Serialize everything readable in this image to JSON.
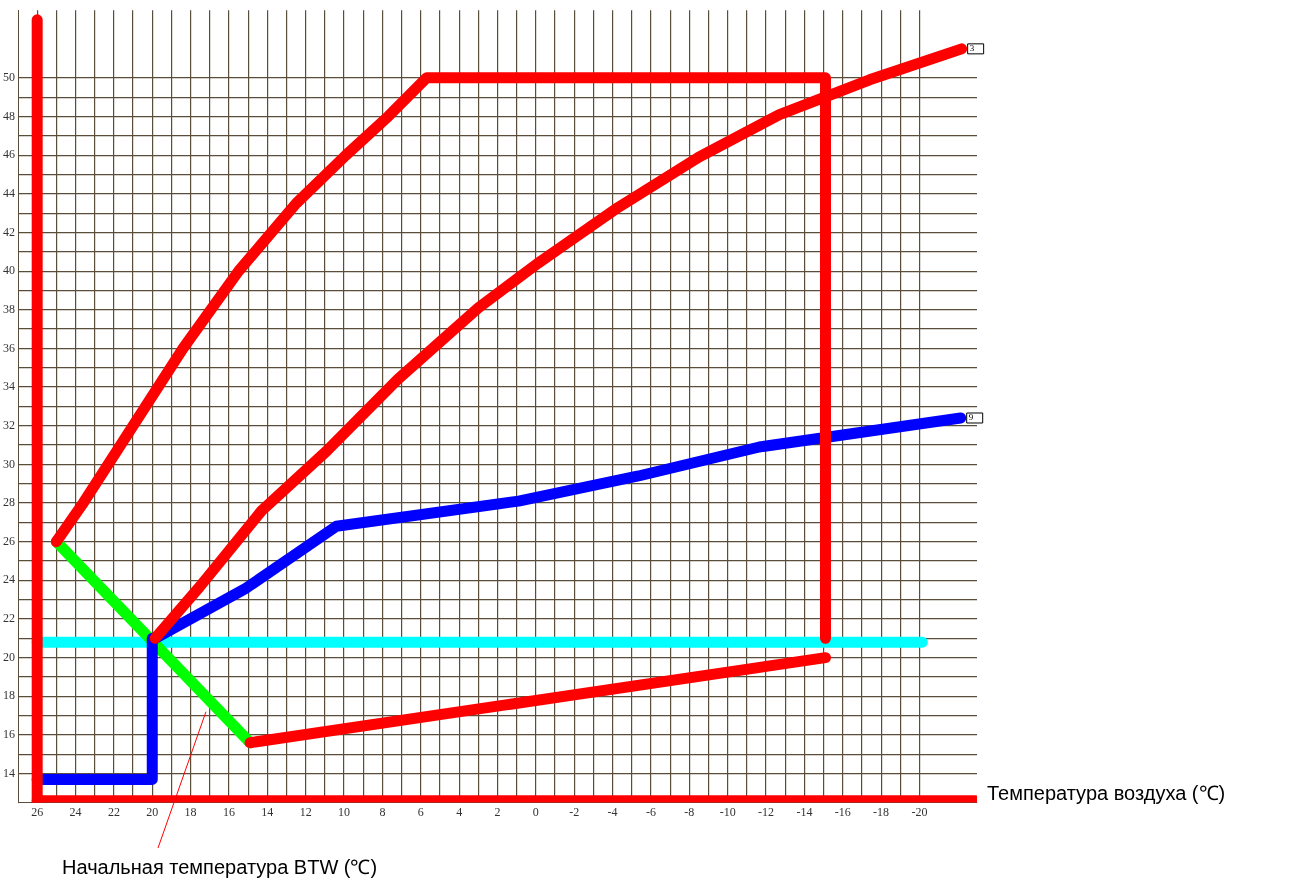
{
  "chart_data": {
    "type": "line",
    "xlabel": "Температура воздуха (℃)",
    "xlim": [
      27,
      -23
    ],
    "ylim": [
      12.5,
      53.5
    ],
    "xticks": [
      26,
      {
        "value": 25,
        "label": null
      },
      24,
      {
        "value": 23,
        "label": null
      },
      22,
      {
        "value": 21,
        "label": null
      },
      20,
      {
        "value": 19,
        "label": null
      },
      18,
      {
        "value": 17,
        "label": null
      },
      16,
      {
        "value": 15,
        "label": null
      },
      14,
      {
        "value": 13,
        "label": null
      },
      12,
      {
        "value": 11,
        "label": null
      },
      10,
      {
        "value": 9,
        "label": null
      },
      8,
      {
        "value": 7,
        "label": null
      },
      6,
      {
        "value": 5,
        "label": null
      },
      4,
      {
        "value": 3,
        "label": null
      },
      2,
      {
        "value": 1,
        "label": null
      },
      0,
      {
        "value": -1,
        "label": null
      },
      -2,
      {
        "value": -3,
        "label": null
      },
      -4,
      {
        "value": -5,
        "label": null
      },
      -6,
      {
        "value": -7,
        "label": null
      },
      -8,
      {
        "value": -9,
        "label": null
      },
      -10,
      {
        "value": -11,
        "label": null
      },
      -12,
      {
        "value": -13,
        "label": null
      },
      -14,
      {
        "value": -15,
        "label": null
      },
      -16,
      {
        "value": -17,
        "label": null
      },
      -18,
      {
        "value": -19,
        "label": null
      },
      -20
    ],
    "yticks": [
      14,
      {
        "value": 15,
        "label": null
      },
      16,
      {
        "value": 17,
        "label": null
      },
      18,
      {
        "value": 19,
        "label": null
      },
      20,
      {
        "value": 21,
        "label": null
      },
      22,
      {
        "value": 23,
        "label": null
      },
      24,
      {
        "value": 25,
        "label": null
      },
      26,
      {
        "value": 27,
        "label": null
      },
      28,
      {
        "value": 29,
        "label": null
      },
      30,
      {
        "value": 31,
        "label": null
      },
      32,
      {
        "value": 33,
        "label": null
      },
      34,
      {
        "value": 35,
        "label": null
      },
      36,
      {
        "value": 37,
        "label": null
      },
      38,
      {
        "value": 39,
        "label": null
      },
      40,
      {
        "value": 41,
        "label": null
      },
      42,
      {
        "value": 43,
        "label": null
      },
      44,
      {
        "value": 45,
        "label": null
      },
      46,
      {
        "value": 47,
        "label": null
      },
      48,
      {
        "value": 49,
        "label": null
      },
      50
    ],
    "grid": true,
    "marker": "none",
    "line_style": "solid",
    "legend": false,
    "series": [
      {
        "color": "#ff0000",
        "x": [
          26,
          26
        ],
        "values": [
          12.6,
          53
        ]
      },
      {
        "color": "#ff0000",
        "x": [
          26,
          -22.9
        ],
        "values": [
          12.6,
          12.6
        ]
      },
      {
        "color": "#ff0000",
        "x": [
          25,
          23.6,
          21,
          18.4,
          15.5,
          12.5,
          9.9,
          7.7,
          5.7,
          -15.1,
          -15.1
        ],
        "values": [
          26,
          28,
          32,
          36,
          40,
          43.5,
          46,
          48,
          50,
          50,
          21
        ]
      },
      {
        "color": "#ff0000",
        "x": [
          19.85,
          17.5,
          14.3,
          10.9,
          7.2,
          3,
          -0.1,
          -4.3,
          -8.5,
          -12.7,
          -17.4,
          -22.2
        ],
        "values": [
          21,
          23.7,
          27.6,
          30.7,
          34.4,
          38.1,
          40.4,
          43.3,
          45.9,
          48.1,
          49.9,
          51.5
        ]
      },
      {
        "color": "#ff0000",
        "x": [
          14.9,
          -15.1
        ],
        "values": [
          15.6,
          20
        ]
      },
      {
        "color": "#0000ff",
        "x": [
          19.85,
          15.1,
          10.4,
          0.9,
          -5.35,
          -11.65,
          -22.15
        ],
        "values": [
          21,
          23.6,
          26.8,
          28.1,
          29.4,
          30.9,
          32.4
        ]
      },
      {
        "color": "#0000ff",
        "x": [
          26,
          20,
          20
        ],
        "values": [
          13.7,
          13.7,
          21
        ]
      },
      {
        "color": "#00ff00",
        "x": [
          25,
          14.9
        ],
        "values": [
          26,
          15.6
        ]
      },
      {
        "color": "#00ffff",
        "x": [
          26,
          -20.15
        ],
        "values": [
          20.8,
          20.8
        ]
      }
    ],
    "annotations": [
      {
        "text": "3",
        "x": -22.2,
        "y": 51.5
      },
      {
        "text": "9",
        "x": -22.15,
        "y": 32.4
      },
      {
        "text": "Начальная температура BTW (℃)",
        "x": 17.2,
        "y": 17.2
      }
    ]
  }
}
